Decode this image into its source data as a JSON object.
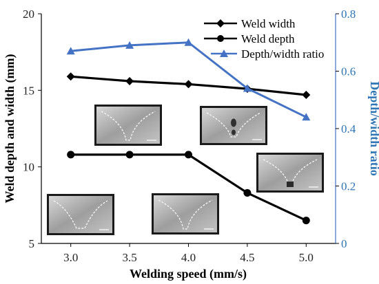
{
  "chart_data": {
    "type": "line",
    "x": [
      3.0,
      3.5,
      4.0,
      4.5,
      5.0
    ],
    "x_tick_labels": [
      "3.0",
      "3.5",
      "4.0",
      "4.5",
      "5.0"
    ],
    "xlim": [
      2.75,
      5.25
    ],
    "xlabel": "Welding speed (mm/s)",
    "ylabel": "Weld depth and width (mm)",
    "ylim": [
      5,
      20
    ],
    "y_tick_labels": [
      "5",
      "10",
      "15",
      "20"
    ],
    "y2label": "Depth/width ratio",
    "y2lim": [
      0,
      0.8
    ],
    "y2_tick_labels": [
      "0",
      "0.2",
      "0.4",
      "0.6",
      "0.8"
    ],
    "series": [
      {
        "name": "Weld width",
        "axis": "left",
        "marker": "diamond",
        "color": "#000000",
        "values": [
          15.9,
          15.6,
          15.4,
          15.1,
          14.7
        ]
      },
      {
        "name": "Weld depth",
        "axis": "left",
        "marker": "circle",
        "color": "#000000",
        "values": [
          10.8,
          10.8,
          10.8,
          8.3,
          6.5
        ]
      },
      {
        "name": "Depth/width ratio",
        "axis": "right",
        "marker": "triangle",
        "color": "#4472c4",
        "values": [
          0.67,
          0.69,
          0.7,
          0.54,
          0.44
        ]
      }
    ],
    "legend_position": "top-right",
    "grid": false
  },
  "insets": [
    {
      "name": "cross-section-3.0",
      "shape": "wide-v"
    },
    {
      "name": "cross-section-3.5",
      "shape": "deep-v"
    },
    {
      "name": "cross-section-4.0",
      "shape": "deep-v"
    },
    {
      "name": "cross-section-4.5",
      "shape": "keyhole"
    },
    {
      "name": "cross-section-5.0",
      "shape": "shallow-v"
    }
  ]
}
